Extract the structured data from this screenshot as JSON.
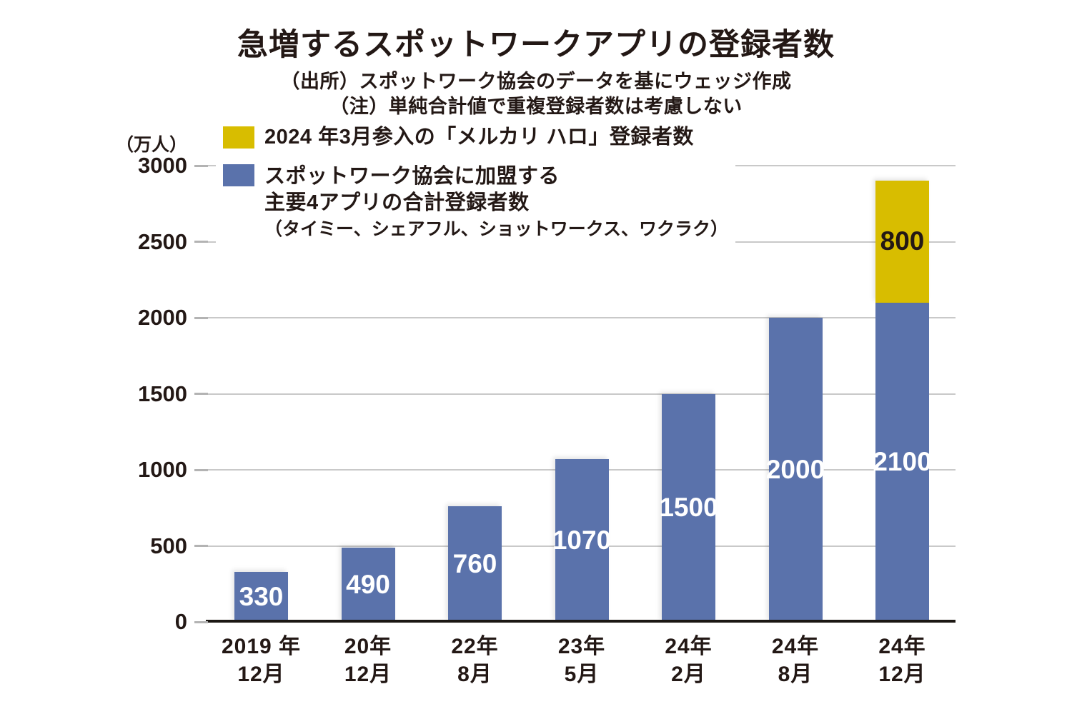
{
  "title": "急増するスポットワークアプリの登録者数",
  "source_note": "（出所）スポットワーク協会のデータを基にウェッジ作成",
  "note": "（注）単純合計値で重複登録者数は考慮しない",
  "y_unit": "（万人）",
  "colors": {
    "mercari_yellow": "#d8bd00",
    "association_blue": "#5a72ab",
    "text_dark": "#231815",
    "grid_gray": "#c9c9c9",
    "bar_label_light": "#ffffff"
  },
  "legend": {
    "mercari": {
      "label": "2024 年3月参入の「メルカリ ハロ」登録者数",
      "color": "#d8bd00"
    },
    "association": {
      "line1": "スポットワーク協会に加盟する",
      "line2": "主要4アプリの合計登録者数",
      "line3": "（タイミー、シェアフル、ショットワークス、ワクラク）",
      "color": "#5a72ab"
    }
  },
  "chart_data": {
    "type": "bar",
    "stacked": true,
    "title": "急増するスポットワークアプリの登録者数",
    "ylabel": "（万人）",
    "ylim": [
      0,
      3000
    ],
    "yticks": [
      0,
      500,
      1000,
      1500,
      2000,
      2500,
      3000
    ],
    "grid": true,
    "legend_position": "top-left",
    "categories": [
      [
        "2019 年",
        "12月"
      ],
      [
        "20年",
        "12月"
      ],
      [
        "22年",
        "8月"
      ],
      [
        "23年",
        "5月"
      ],
      [
        "24年",
        "2月"
      ],
      [
        "24年",
        "8月"
      ],
      [
        "24年",
        "12月"
      ]
    ],
    "series": [
      {
        "name": "スポットワーク協会に加盟する主要4アプリの合計登録者数（タイミー、シェアフル、ショットワークス、ワクラク）",
        "color": "#5a72ab",
        "label_color": "#ffffff",
        "values": [
          330,
          490,
          760,
          1070,
          1500,
          2000,
          2100
        ]
      },
      {
        "name": "2024年3月参入の「メルカリ ハロ」登録者数",
        "color": "#d8bd00",
        "label_color": "#231815",
        "values": [
          null,
          null,
          null,
          null,
          null,
          null,
          800
        ]
      }
    ]
  }
}
